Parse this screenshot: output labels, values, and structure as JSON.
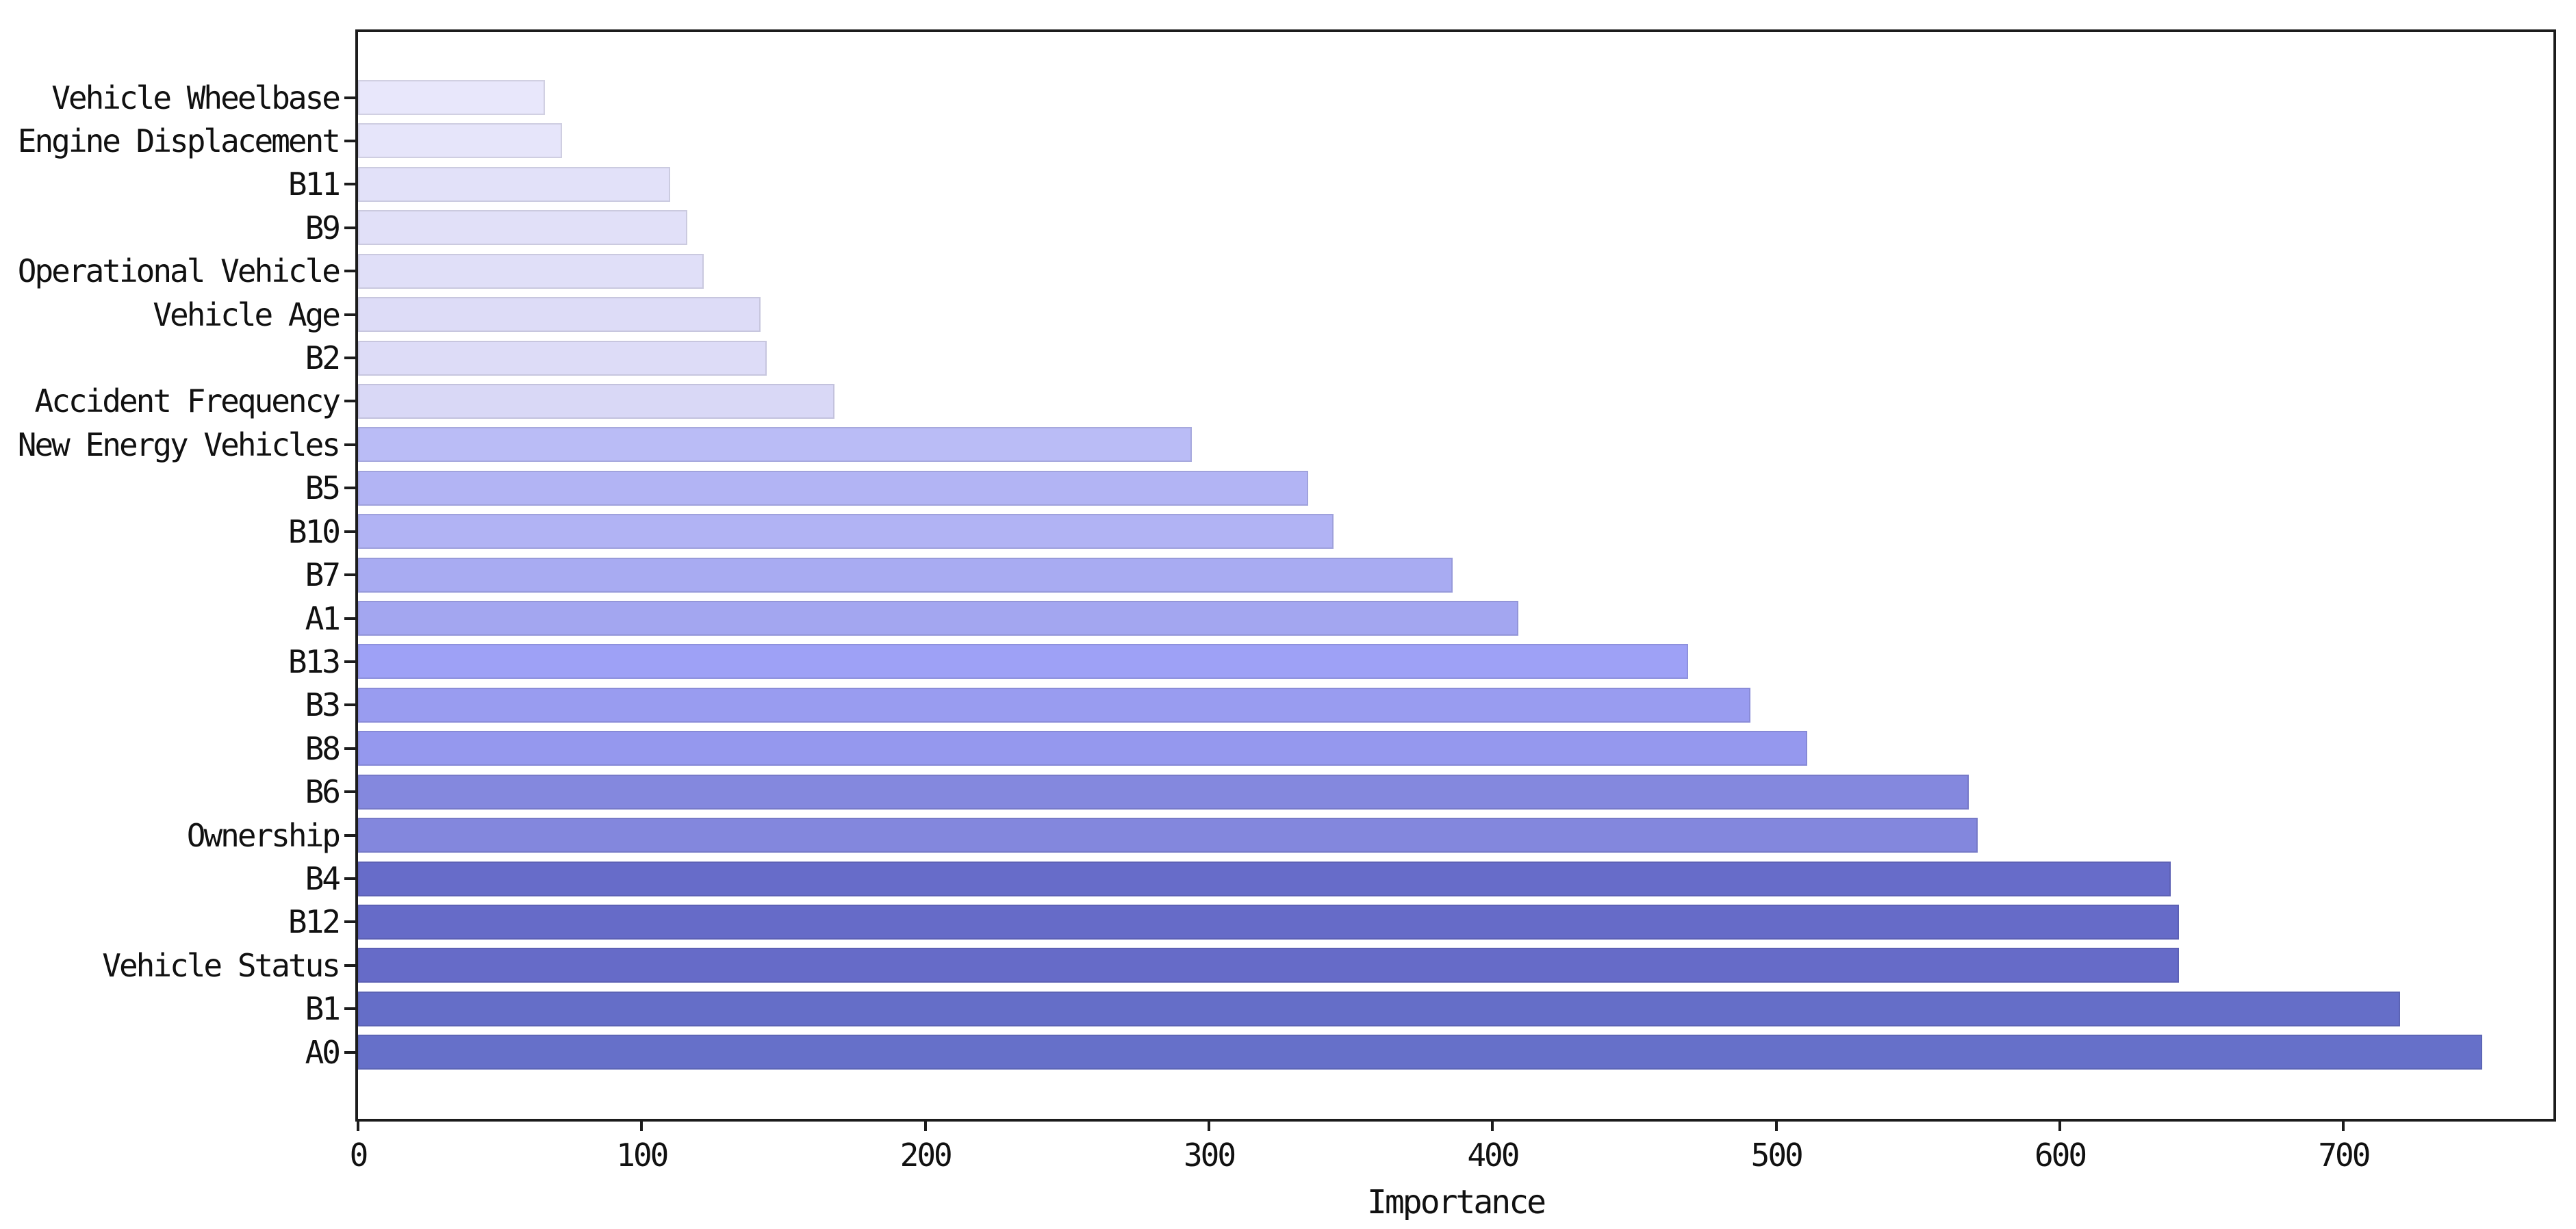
{
  "chart_data": {
    "type": "bar",
    "orientation": "horizontal",
    "title": "",
    "xlabel": "Importance",
    "ylabel": "",
    "grid": false,
    "legend": null,
    "background": "#ffffff",
    "axis_color": "#1c1c1c",
    "text_color": "#111111",
    "xlim": [
      0,
      774
    ],
    "x_ticks": [
      0,
      100,
      200,
      300,
      400,
      500,
      600,
      700
    ],
    "categories": [
      "Vehicle Wheelbase",
      "Engine Displacement",
      "B11",
      "B9",
      "Operational Vehicle",
      "Vehicle Age",
      "B2",
      "Accident Frequency",
      "New Energy Vehicles",
      "B5",
      "B10",
      "B7",
      "A1",
      "B13",
      "B3",
      "B8",
      "B6",
      "Ownership",
      "B4",
      "B12",
      "Vehicle Status",
      "B1",
      "A0"
    ],
    "values": [
      66,
      72,
      110,
      116,
      122,
      142,
      144,
      168,
      294,
      335,
      344,
      386,
      409,
      469,
      491,
      511,
      568,
      571,
      639,
      642,
      642,
      720,
      749
    ],
    "bar_colors": [
      "#e8e7fb",
      "#e6e5fa",
      "#e2e1f9",
      "#e1e0f8",
      "#e0dff8",
      "#dddcf7",
      "#dddcf7",
      "#d9d8f6",
      "#babcf6",
      "#b2b4f4",
      "#b1b3f4",
      "#a8abf2",
      "#a3a6f0",
      "#9ea1f6",
      "#999cf0",
      "#9598ee",
      "#8488de",
      "#8387dd",
      "#676cc9",
      "#666bc8",
      "#666bc8",
      "#656ec8",
      "#6670c9"
    ]
  }
}
